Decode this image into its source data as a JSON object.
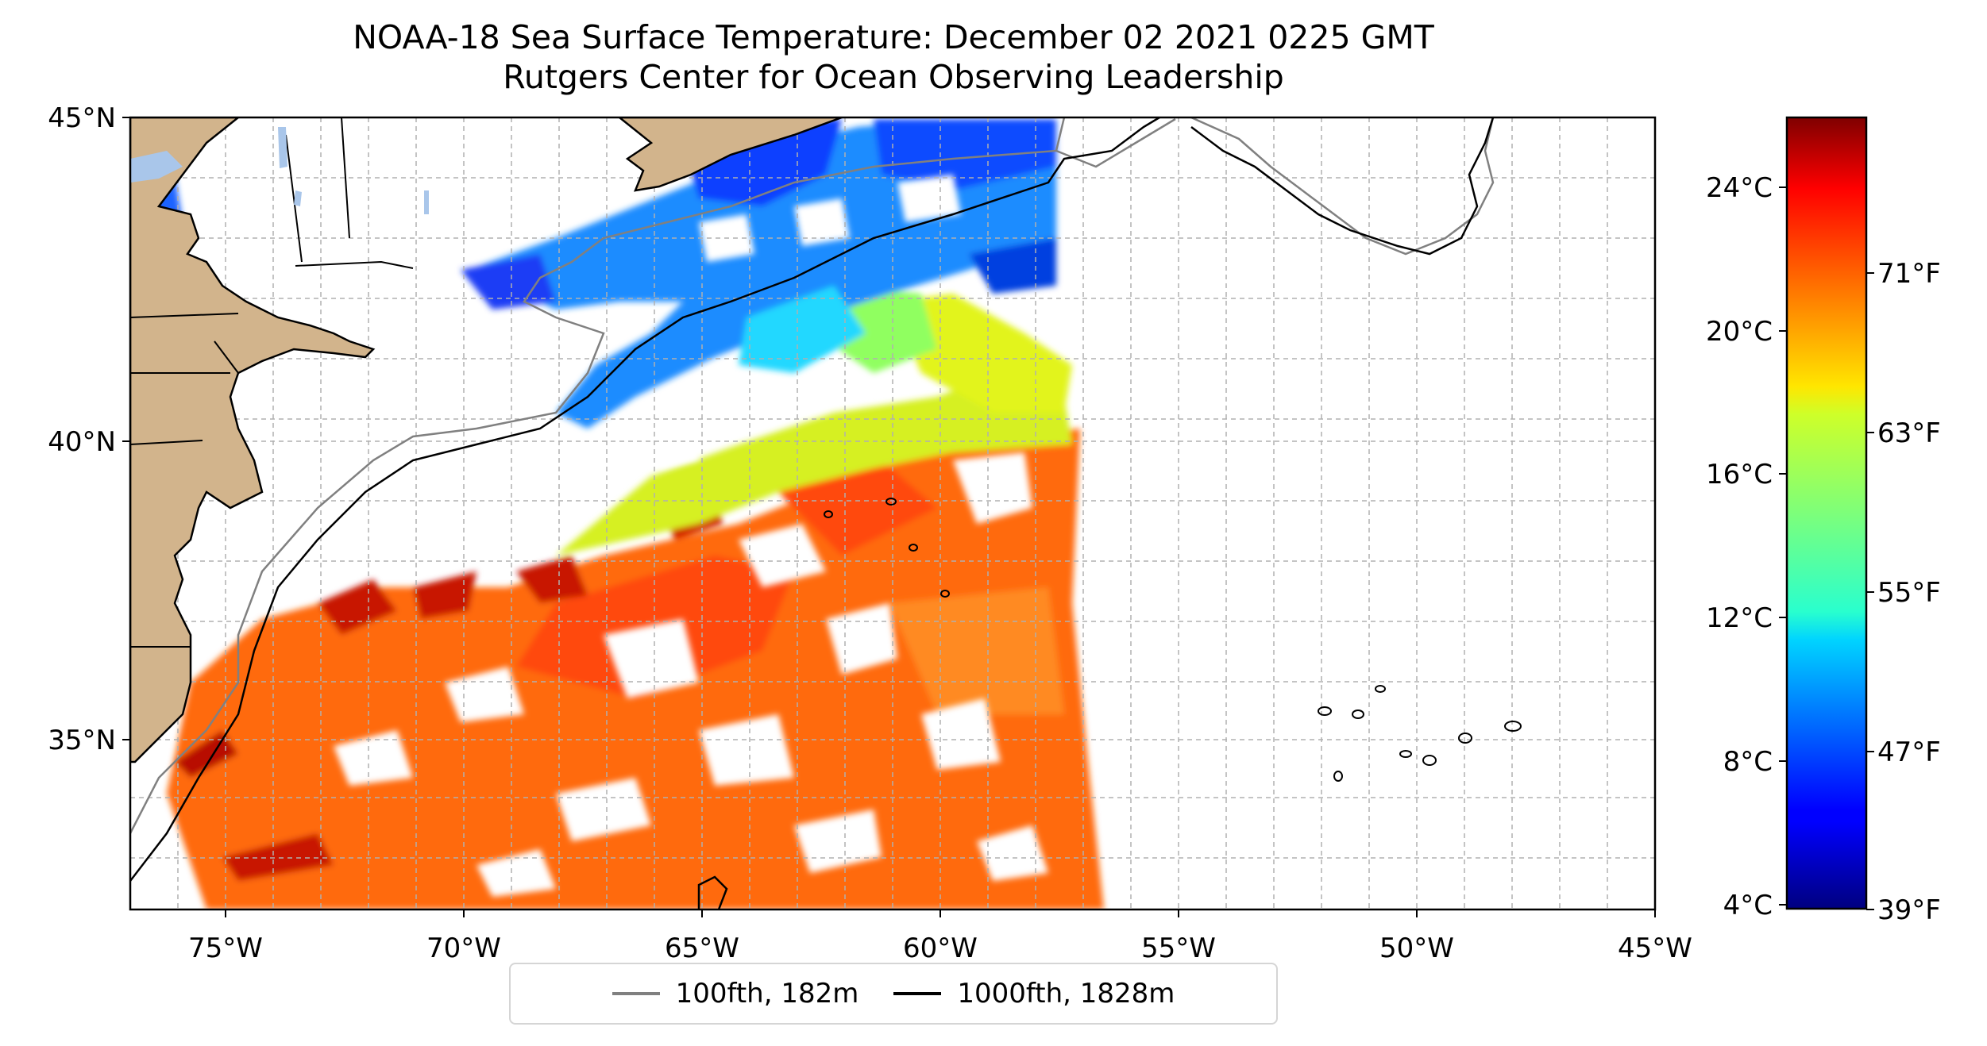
{
  "title": {
    "line1": "NOAA-18 Sea Surface Temperature: December 02 2021 0225 GMT",
    "line2": "Rutgers Center for Ocean Observing Leadership"
  },
  "map": {
    "lon_range": [
      -77,
      -45
    ],
    "lat_range": [
      32.2,
      45
    ],
    "lon_ticks": [
      "75°W",
      "70°W",
      "65°W",
      "60°W",
      "55°W",
      "50°W",
      "45°W"
    ],
    "lon_tick_values": [
      -75,
      -70,
      -65,
      -60,
      -55,
      -50,
      -45
    ],
    "lat_ticks": [
      "45°N",
      "40°N",
      "35°N"
    ],
    "lat_tick_values": [
      45,
      40,
      35
    ],
    "gridlines": true,
    "land_color": "#d2b48c",
    "lake_color": "#a9c6ea"
  },
  "colorbar": {
    "colormap": "jet",
    "celsius_ticks": [
      "24°C",
      "20°C",
      "16°C",
      "12°C",
      "8°C",
      "4°C"
    ],
    "celsius_values": [
      24,
      20,
      16,
      12,
      8,
      4
    ],
    "fahrenheit_ticks": [
      "71°F",
      "63°F",
      "55°F",
      "47°F",
      "39°F"
    ],
    "fahrenheit_values": [
      71,
      63,
      55,
      47,
      39
    ],
    "range_c": [
      3.9,
      26
    ]
  },
  "legend": {
    "items": [
      {
        "label": "100fth, 182m",
        "color": "#808080"
      },
      {
        "label": "1000fth, 1828m",
        "color": "#000000"
      }
    ]
  }
}
